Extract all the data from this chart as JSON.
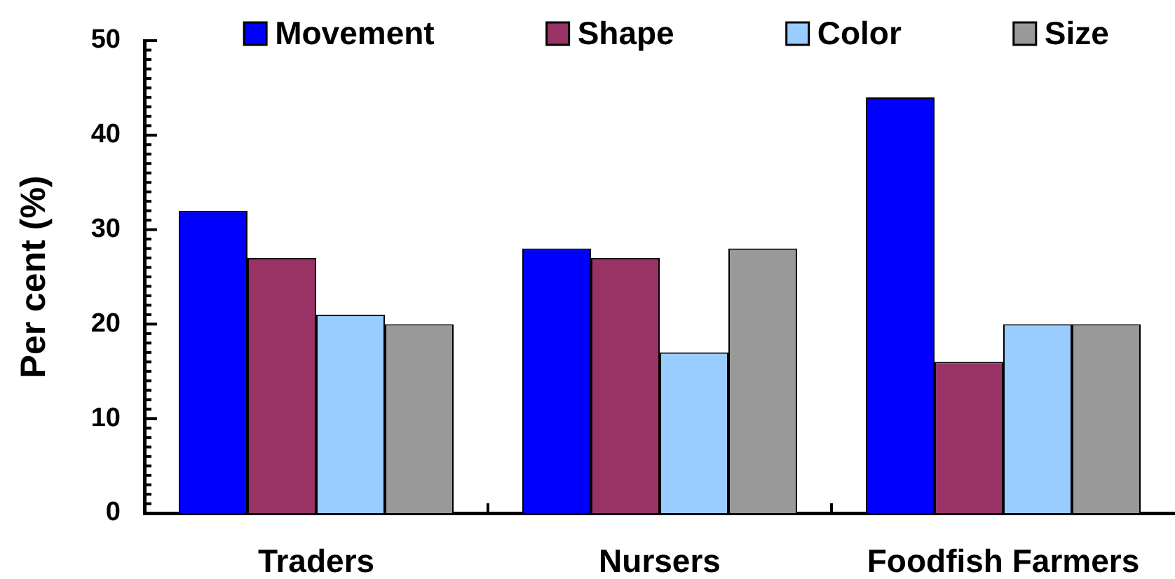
{
  "chart_data": {
    "type": "bar",
    "categories": [
      "Traders",
      "Nursers",
      "Foodfish Farmers"
    ],
    "series": [
      {
        "name": "Movement",
        "color": "#0000ff",
        "values": [
          32,
          28,
          44
        ]
      },
      {
        "name": "Shape",
        "color": "#993366",
        "values": [
          27,
          27,
          16
        ]
      },
      {
        "name": "Color",
        "color": "#99ccff",
        "values": [
          21,
          17,
          20
        ]
      },
      {
        "name": "Size",
        "color": "#999999",
        "values": [
          20,
          28,
          20
        ]
      }
    ],
    "ylabel": "Per cent (%)",
    "ylim": [
      0,
      50
    ],
    "yticks": [
      0,
      {
        "value": 1,
        "label": null
      },
      {
        "value": 2,
        "label": null
      },
      {
        "value": 3,
        "label": null
      },
      {
        "value": 4,
        "label": null
      },
      {
        "value": 5,
        "label": null
      },
      {
        "value": 6,
        "label": null
      },
      {
        "value": 7,
        "label": null
      },
      {
        "value": 8,
        "label": null
      },
      {
        "value": 9,
        "label": null
      },
      10,
      {
        "value": 11,
        "label": null
      },
      {
        "value": 12,
        "label": null
      },
      {
        "value": 13,
        "label": null
      },
      {
        "value": 14,
        "label": null
      },
      {
        "value": 15,
        "label": null
      },
      {
        "value": 16,
        "label": null
      },
      {
        "value": 17,
        "label": null
      },
      {
        "value": 18,
        "label": null
      },
      {
        "value": 19,
        "label": null
      },
      20,
      {
        "value": 21,
        "label": null
      },
      {
        "value": 22,
        "label": null
      },
      {
        "value": 23,
        "label": null
      },
      {
        "value": 24,
        "label": null
      },
      {
        "value": 25,
        "label": null
      },
      {
        "value": 26,
        "label": null
      },
      {
        "value": 27,
        "label": null
      },
      {
        "value": 28,
        "label": null
      },
      {
        "value": 29,
        "label": null
      },
      30,
      {
        "value": 31,
        "label": null
      },
      {
        "value": 32,
        "label": null
      },
      {
        "value": 33,
        "label": null
      },
      {
        "value": 34,
        "label": null
      },
      {
        "value": 35,
        "label": null
      },
      {
        "value": 36,
        "label": null
      },
      {
        "value": 37,
        "label": null
      },
      {
        "value": 38,
        "label": null
      },
      {
        "value": 39,
        "label": null
      },
      40,
      {
        "value": 41,
        "label": null
      },
      {
        "value": 42,
        "label": null
      },
      {
        "value": 43,
        "label": null
      },
      {
        "value": 44,
        "label": null
      },
      {
        "value": 45,
        "label": null
      },
      {
        "value": 46,
        "label": null
      },
      {
        "value": 47,
        "label": null
      },
      {
        "value": 48,
        "label": null
      },
      {
        "value": 49,
        "label": null
      },
      50
    ],
    "grid": false,
    "legend": "top"
  }
}
